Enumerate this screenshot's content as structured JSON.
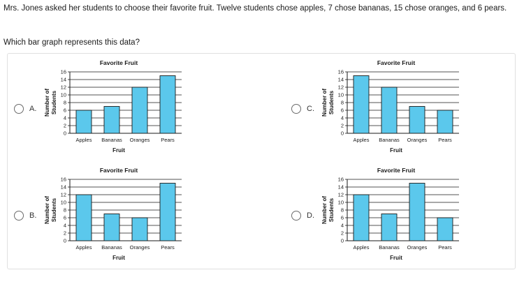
{
  "question": {
    "text": "Mrs. Jones asked her students to choose their favorite fruit. Twelve students chose apples, 7 chose bananas, 15 chose oranges, and 6 pears.",
    "prompt": "Which bar graph represents this data?"
  },
  "options": [
    {
      "letter": "A.",
      "selected": false
    },
    {
      "letter": "B.",
      "selected": false
    },
    {
      "letter": "C.",
      "selected": false
    },
    {
      "letter": "D.",
      "selected": false
    }
  ],
  "colors": {
    "bar": "#5bc8ec",
    "bar_stroke": "#1a1a1a",
    "grid": "#1a1a1a"
  },
  "chart_data": [
    {
      "type": "bar",
      "option": "A.",
      "title": "Favorite Fruit",
      "xlabel": "Fruit",
      "ylabel": "Number of Students",
      "categories": [
        "Apples",
        "Bananas",
        "Oranges",
        "Pears"
      ],
      "values": [
        6,
        7,
        12,
        15
      ],
      "ylim": [
        0,
        16
      ],
      "yticks": [
        0,
        2,
        4,
        6,
        8,
        10,
        12,
        14,
        16
      ],
      "grid": true
    },
    {
      "type": "bar",
      "option": "B.",
      "title": "Favorite Fruit",
      "xlabel": "Fruit",
      "ylabel": "Number of Students",
      "categories": [
        "Apples",
        "Bananas",
        "Oranges",
        "Pears"
      ],
      "values": [
        12,
        7,
        6,
        15
      ],
      "ylim": [
        0,
        16
      ],
      "yticks": [
        0,
        2,
        4,
        6,
        8,
        10,
        12,
        14,
        16
      ],
      "grid": true
    },
    {
      "type": "bar",
      "option": "C.",
      "title": "Favorite Fruit",
      "xlabel": "Fruit",
      "ylabel": "Number of Students",
      "categories": [
        "Apples",
        "Bananas",
        "Oranges",
        "Pears"
      ],
      "values": [
        15,
        12,
        7,
        6
      ],
      "ylim": [
        0,
        16
      ],
      "yticks": [
        0,
        2,
        4,
        6,
        8,
        10,
        12,
        14,
        16
      ],
      "grid": true
    },
    {
      "type": "bar",
      "option": "D.",
      "title": "Favorite Fruit",
      "xlabel": "Fruit",
      "ylabel": "Number of Students",
      "categories": [
        "Apples",
        "Bananas",
        "Oranges",
        "Pears"
      ],
      "values": [
        12,
        7,
        15,
        6
      ],
      "ylim": [
        0,
        16
      ],
      "yticks": [
        0,
        2,
        4,
        6,
        8,
        10,
        12,
        14,
        16
      ],
      "grid": true
    }
  ]
}
